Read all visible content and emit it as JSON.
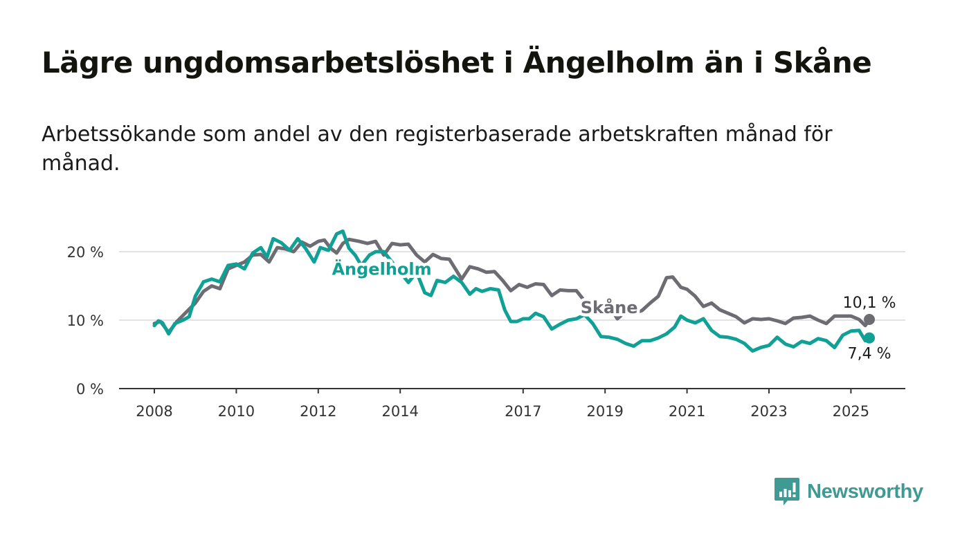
{
  "title": "Lägre ungdomsarbetslöshet i Ängelholm än i Skåne",
  "subtitle": "Arbetssökande som andel av den registerbaserade arbetskraften månad för månad.",
  "brand": {
    "name": "Newsworthy",
    "icon": "newsworthy-logo-icon",
    "color": "#3e9a92"
  },
  "colors": {
    "skane": "#6e6c73",
    "angelholm": "#11a095",
    "grid": "#d9d9d9",
    "axis": "#333333"
  },
  "chart_data": {
    "type": "line",
    "title": "Lägre ungdomsarbetslöshet i Ängelholm än i Skåne",
    "subtitle": "Arbetssökande som andel av den registerbaserade arbetskraften månad för månad.",
    "ylim": [
      0,
      25
    ],
    "yticks": [
      {
        "value": 0,
        "label": "0 %"
      },
      {
        "value": 10,
        "label": "10 %"
      },
      {
        "value": 20,
        "label": "20 %"
      }
    ],
    "xlim": [
      2007.55,
      2026.25
    ],
    "xticks": [
      {
        "value": 2008,
        "label": "2008"
      },
      {
        "value": 2010,
        "label": "2010"
      },
      {
        "value": 2012,
        "label": "2012"
      },
      {
        "value": 2014,
        "label": "2014"
      },
      {
        "value": 2017,
        "label": "2017"
      },
      {
        "value": 2019,
        "label": "2019"
      },
      {
        "value": 2021,
        "label": "2021"
      },
      {
        "value": 2023,
        "label": "2023"
      },
      {
        "value": 2025,
        "label": "2025"
      }
    ],
    "grid": "horizontal",
    "legend": "direct labels on lines",
    "series": [
      {
        "name": "Skåne",
        "color": "#6e6c73",
        "end_label": "10,1 %",
        "end_value": 10.1,
        "points": [
          [
            2008.0,
            9.5
          ],
          [
            2008.15,
            9.8
          ],
          [
            2008.35,
            8.2
          ],
          [
            2008.55,
            9.8
          ],
          [
            2008.75,
            11.0
          ],
          [
            2009.0,
            12.5
          ],
          [
            2009.2,
            14.2
          ],
          [
            2009.4,
            15.0
          ],
          [
            2009.6,
            14.6
          ],
          [
            2009.8,
            17.5
          ],
          [
            2010.0,
            18.0
          ],
          [
            2010.2,
            18.5
          ],
          [
            2010.4,
            19.5
          ],
          [
            2010.6,
            19.6
          ],
          [
            2010.8,
            18.5
          ],
          [
            2011.0,
            20.6
          ],
          [
            2011.2,
            20.4
          ],
          [
            2011.4,
            20.0
          ],
          [
            2011.6,
            21.4
          ],
          [
            2011.8,
            20.8
          ],
          [
            2012.0,
            21.5
          ],
          [
            2012.15,
            21.7
          ],
          [
            2012.3,
            20.5
          ],
          [
            2012.45,
            19.8
          ],
          [
            2012.6,
            21.2
          ],
          [
            2012.75,
            21.8
          ],
          [
            2013.0,
            21.5
          ],
          [
            2013.2,
            21.2
          ],
          [
            2013.4,
            21.5
          ],
          [
            2013.6,
            19.5
          ],
          [
            2013.8,
            21.2
          ],
          [
            2014.0,
            21.0
          ],
          [
            2014.2,
            21.1
          ],
          [
            2014.4,
            19.5
          ],
          [
            2014.6,
            18.5
          ],
          [
            2014.8,
            19.6
          ],
          [
            2015.0,
            19.0
          ],
          [
            2015.2,
            18.9
          ],
          [
            2015.5,
            16.0
          ],
          [
            2015.7,
            17.8
          ],
          [
            2015.9,
            17.5
          ],
          [
            2016.1,
            17.0
          ],
          [
            2016.3,
            17.1
          ],
          [
            2016.5,
            15.8
          ],
          [
            2016.7,
            14.3
          ],
          [
            2016.9,
            15.2
          ],
          [
            2017.1,
            14.8
          ],
          [
            2017.3,
            15.3
          ],
          [
            2017.5,
            15.2
          ],
          [
            2017.7,
            13.6
          ],
          [
            2017.9,
            14.4
          ],
          [
            2018.1,
            14.3
          ],
          [
            2018.3,
            14.3
          ],
          [
            2018.5,
            12.8
          ],
          [
            2018.7,
            11.5
          ],
          [
            2018.9,
            12.4
          ],
          [
            2019.1,
            12.0
          ],
          [
            2019.3,
            10.2
          ],
          [
            2019.5,
            11.2
          ],
          [
            2019.7,
            11.0
          ],
          [
            2019.9,
            11.4
          ],
          [
            2020.1,
            12.5
          ],
          [
            2020.3,
            13.5
          ],
          [
            2020.5,
            16.2
          ],
          [
            2020.65,
            16.3
          ],
          [
            2020.85,
            14.8
          ],
          [
            2021.0,
            14.5
          ],
          [
            2021.2,
            13.5
          ],
          [
            2021.4,
            12.0
          ],
          [
            2021.6,
            12.5
          ],
          [
            2021.8,
            11.5
          ],
          [
            2022.0,
            11.0
          ],
          [
            2022.2,
            10.5
          ],
          [
            2022.4,
            9.6
          ],
          [
            2022.6,
            10.2
          ],
          [
            2022.8,
            10.1
          ],
          [
            2023.0,
            10.2
          ],
          [
            2023.2,
            9.9
          ],
          [
            2023.4,
            9.5
          ],
          [
            2023.6,
            10.3
          ],
          [
            2023.8,
            10.4
          ],
          [
            2024.0,
            10.6
          ],
          [
            2024.2,
            10.0
          ],
          [
            2024.4,
            9.5
          ],
          [
            2024.6,
            10.6
          ],
          [
            2024.8,
            10.6
          ],
          [
            2025.0,
            10.6
          ],
          [
            2025.2,
            10.1
          ],
          [
            2025.35,
            9.2
          ],
          [
            2025.45,
            10.1
          ]
        ]
      },
      {
        "name": "Ängelholm",
        "color": "#11a095",
        "end_label": "7,4 %",
        "end_value": 7.4,
        "points": [
          [
            2008.0,
            9.2
          ],
          [
            2008.1,
            9.9
          ],
          [
            2008.2,
            9.6
          ],
          [
            2008.35,
            8.0
          ],
          [
            2008.5,
            9.5
          ],
          [
            2008.7,
            10.0
          ],
          [
            2008.85,
            10.5
          ],
          [
            2009.0,
            13.5
          ],
          [
            2009.2,
            15.6
          ],
          [
            2009.4,
            16.0
          ],
          [
            2009.6,
            15.6
          ],
          [
            2009.8,
            18.0
          ],
          [
            2010.0,
            18.2
          ],
          [
            2010.2,
            17.5
          ],
          [
            2010.4,
            19.8
          ],
          [
            2010.6,
            20.6
          ],
          [
            2010.75,
            19.2
          ],
          [
            2010.9,
            21.9
          ],
          [
            2011.1,
            21.3
          ],
          [
            2011.3,
            20.2
          ],
          [
            2011.5,
            21.9
          ],
          [
            2011.7,
            20.4
          ],
          [
            2011.9,
            18.5
          ],
          [
            2012.05,
            20.6
          ],
          [
            2012.25,
            20.2
          ],
          [
            2012.45,
            22.6
          ],
          [
            2012.6,
            23.0
          ],
          [
            2012.75,
            20.5
          ],
          [
            2012.9,
            19.5
          ],
          [
            2013.05,
            18.0
          ],
          [
            2013.25,
            19.5
          ],
          [
            2013.4,
            20.0
          ],
          [
            2013.6,
            20.0
          ],
          [
            2013.8,
            18.5
          ],
          [
            2014.0,
            17.0
          ],
          [
            2014.2,
            15.5
          ],
          [
            2014.4,
            17.0
          ],
          [
            2014.6,
            14.0
          ],
          [
            2014.75,
            13.6
          ],
          [
            2014.9,
            15.8
          ],
          [
            2015.1,
            15.5
          ],
          [
            2015.3,
            16.4
          ],
          [
            2015.5,
            15.5
          ],
          [
            2015.7,
            13.8
          ],
          [
            2015.85,
            14.6
          ],
          [
            2016.0,
            14.2
          ],
          [
            2016.2,
            14.6
          ],
          [
            2016.4,
            14.4
          ],
          [
            2016.55,
            11.5
          ],
          [
            2016.7,
            9.8
          ],
          [
            2016.85,
            9.8
          ],
          [
            2017.0,
            10.2
          ],
          [
            2017.15,
            10.2
          ],
          [
            2017.3,
            11.0
          ],
          [
            2017.5,
            10.5
          ],
          [
            2017.7,
            8.7
          ],
          [
            2017.9,
            9.4
          ],
          [
            2018.1,
            10.0
          ],
          [
            2018.3,
            10.2
          ],
          [
            2018.5,
            10.8
          ],
          [
            2018.7,
            9.5
          ],
          [
            2018.9,
            7.6
          ],
          [
            2019.1,
            7.5
          ],
          [
            2019.3,
            7.2
          ],
          [
            2019.5,
            6.6
          ],
          [
            2019.7,
            6.2
          ],
          [
            2019.9,
            7.0
          ],
          [
            2020.1,
            7.0
          ],
          [
            2020.3,
            7.4
          ],
          [
            2020.5,
            8.0
          ],
          [
            2020.7,
            9.0
          ],
          [
            2020.85,
            10.6
          ],
          [
            2021.0,
            10.0
          ],
          [
            2021.2,
            9.6
          ],
          [
            2021.4,
            10.2
          ],
          [
            2021.6,
            8.5
          ],
          [
            2021.8,
            7.6
          ],
          [
            2022.0,
            7.5
          ],
          [
            2022.2,
            7.2
          ],
          [
            2022.4,
            6.6
          ],
          [
            2022.6,
            5.5
          ],
          [
            2022.8,
            6.0
          ],
          [
            2023.0,
            6.3
          ],
          [
            2023.2,
            7.5
          ],
          [
            2023.4,
            6.5
          ],
          [
            2023.6,
            6.1
          ],
          [
            2023.8,
            6.9
          ],
          [
            2024.0,
            6.6
          ],
          [
            2024.2,
            7.3
          ],
          [
            2024.4,
            7.0
          ],
          [
            2024.6,
            6.0
          ],
          [
            2024.8,
            7.8
          ],
          [
            2025.0,
            8.4
          ],
          [
            2025.2,
            8.5
          ],
          [
            2025.35,
            7.0
          ],
          [
            2025.45,
            7.4
          ]
        ]
      }
    ]
  }
}
